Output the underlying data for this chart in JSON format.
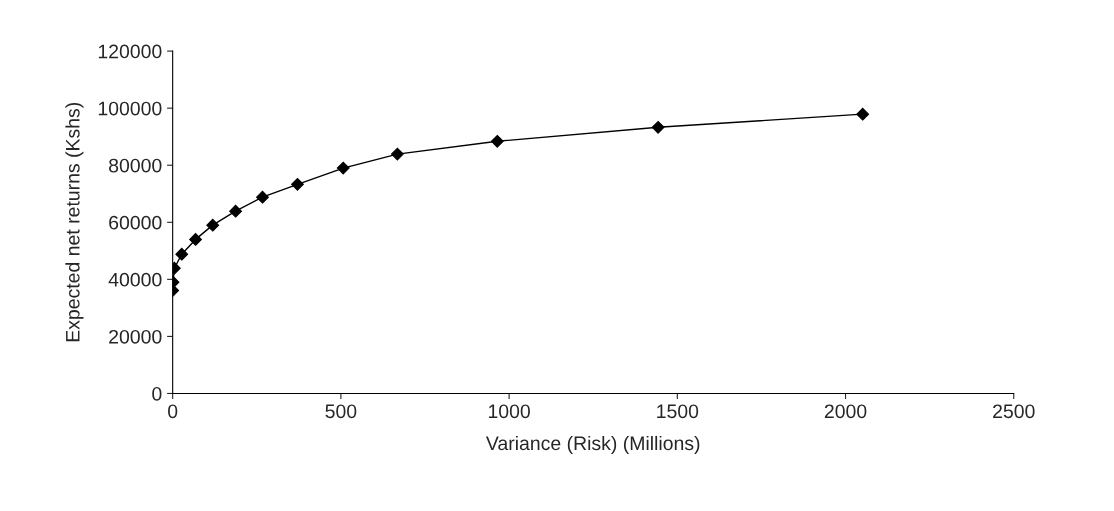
{
  "chart_data": {
    "type": "line",
    "xlabel": "Variance (Risk) (Millions)",
    "ylabel": "Expected net returns (Kshs)",
    "x": [
      0,
      1,
      5,
      27,
      68,
      119,
      187,
      267,
      371,
      507,
      668,
      965,
      1443,
      2051
    ],
    "series": [
      {
        "color": "#000000",
        "values": [
          36100,
          39000,
          43900,
          48800,
          54000,
          59000,
          63900,
          68800,
          73300,
          79000,
          83900,
          88400,
          93300,
          97900
        ]
      }
    ],
    "xlim": [
      0,
      2500
    ],
    "xticks": [
      0,
      500,
      1000,
      1500,
      2000,
      2500
    ],
    "ylim": [
      0,
      120000
    ],
    "yticks": [
      0,
      20000,
      40000,
      60000,
      80000,
      100000,
      120000
    ],
    "marker": "diamond",
    "line_style": "solid",
    "grid": false,
    "legend": false
  }
}
